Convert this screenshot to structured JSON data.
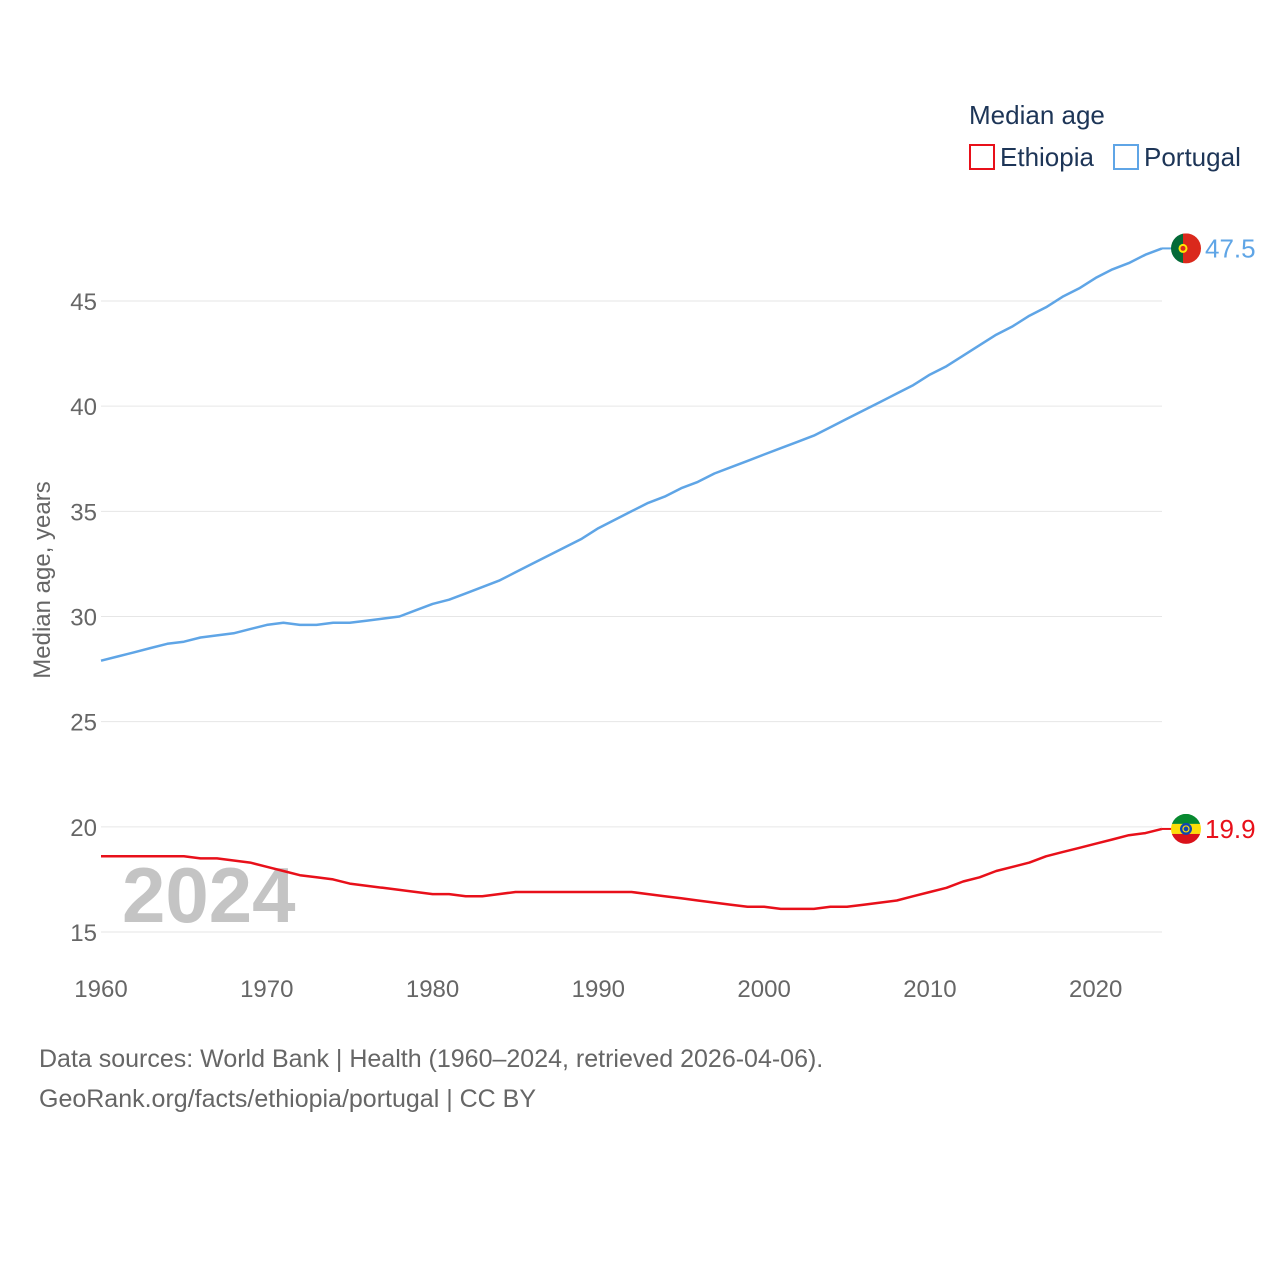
{
  "chart_data": {
    "type": "line",
    "ylabel": "Median age, years",
    "xlabel": "",
    "legend_title": "Median age",
    "legend_position": "top-right",
    "year_overlay": "2024",
    "xlim": [
      1960,
      2024
    ],
    "ylim": [
      13.5,
      49
    ],
    "x_ticks": [
      1960,
      1970,
      1980,
      1990,
      2000,
      2010,
      2020
    ],
    "y_ticks": [
      15,
      20,
      25,
      30,
      35,
      40,
      45
    ],
    "grid": true,
    "x": [
      1960,
      1961,
      1962,
      1963,
      1964,
      1965,
      1966,
      1967,
      1968,
      1969,
      1970,
      1971,
      1972,
      1973,
      1974,
      1975,
      1976,
      1977,
      1978,
      1979,
      1980,
      1981,
      1982,
      1983,
      1984,
      1985,
      1986,
      1987,
      1988,
      1989,
      1990,
      1991,
      1992,
      1993,
      1994,
      1995,
      1996,
      1997,
      1998,
      1999,
      2000,
      2001,
      2002,
      2003,
      2004,
      2005,
      2006,
      2007,
      2008,
      2009,
      2010,
      2011,
      2012,
      2013,
      2014,
      2015,
      2016,
      2017,
      2018,
      2019,
      2020,
      2021,
      2022,
      2023,
      2024
    ],
    "series": [
      {
        "name": "Ethiopia",
        "color": "#e8101a",
        "end_label": "19.9",
        "flag": "ethiopia-flag",
        "values": [
          18.6,
          18.6,
          18.6,
          18.6,
          18.6,
          18.6,
          18.5,
          18.5,
          18.4,
          18.3,
          18.1,
          17.9,
          17.7,
          17.6,
          17.5,
          17.3,
          17.2,
          17.1,
          17.0,
          16.9,
          16.8,
          16.8,
          16.7,
          16.7,
          16.8,
          16.9,
          16.9,
          16.9,
          16.9,
          16.9,
          16.9,
          16.9,
          16.9,
          16.8,
          16.7,
          16.6,
          16.5,
          16.4,
          16.3,
          16.2,
          16.2,
          16.1,
          16.1,
          16.1,
          16.2,
          16.2,
          16.3,
          16.4,
          16.5,
          16.7,
          16.9,
          17.1,
          17.4,
          17.6,
          17.9,
          18.1,
          18.3,
          18.6,
          18.8,
          19.0,
          19.2,
          19.4,
          19.6,
          19.7,
          19.9
        ]
      },
      {
        "name": "Portugal",
        "color": "#5fa5e6",
        "end_label": "47.5",
        "flag": "portugal-flag",
        "values": [
          27.9,
          28.1,
          28.3,
          28.5,
          28.7,
          28.8,
          29.0,
          29.1,
          29.2,
          29.4,
          29.6,
          29.7,
          29.6,
          29.6,
          29.7,
          29.7,
          29.8,
          29.9,
          30.0,
          30.3,
          30.6,
          30.8,
          31.1,
          31.4,
          31.7,
          32.1,
          32.5,
          32.9,
          33.3,
          33.7,
          34.2,
          34.6,
          35.0,
          35.4,
          35.7,
          36.1,
          36.4,
          36.8,
          37.1,
          37.4,
          37.7,
          38.0,
          38.3,
          38.6,
          39.0,
          39.4,
          39.8,
          40.2,
          40.6,
          41.0,
          41.5,
          41.9,
          42.4,
          42.9,
          43.4,
          43.8,
          44.3,
          44.7,
          45.2,
          45.6,
          46.1,
          46.5,
          46.8,
          47.2,
          47.5
        ]
      }
    ]
  },
  "footer": {
    "line1": "Data sources: World Bank | Health (1960–2024, retrieved 2026-04-06).",
    "line2": "GeoRank.org/facts/ethiopia/portugal | CC BY"
  }
}
